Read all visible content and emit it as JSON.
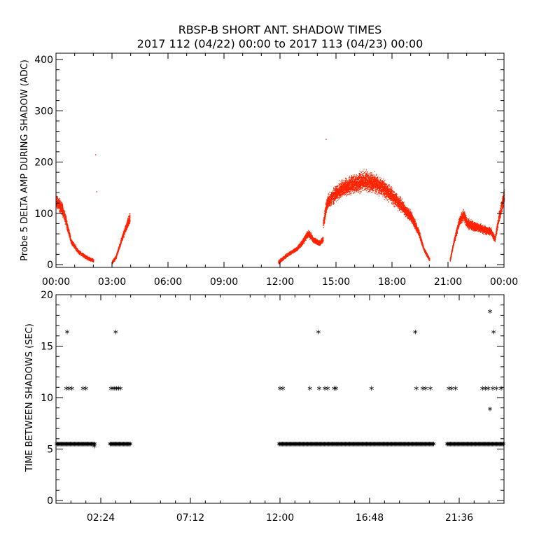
{
  "title": {
    "line1": "RBSP-B SHORT ANT. SHADOW TIMES",
    "line2": "2017 112 (04/22) 00:00 to 2017 113 (04/23) 00:00"
  },
  "colors": {
    "points": "#ff2200",
    "stars": "#000000",
    "frame": "#000000"
  },
  "chart_data": [
    {
      "type": "scatter",
      "ylabel": "Probe 5 DELTA AMP DURING SHADOW (ADC)",
      "xlabel": "",
      "x_unit": "hours",
      "xlim": [
        0,
        24
      ],
      "ylim": [
        0,
        400
      ],
      "xticks": [
        0,
        3,
        6,
        9,
        12,
        15,
        18,
        21,
        24
      ],
      "xtick_labels": [
        "00:00",
        "03:00",
        "06:00",
        "09:00",
        "12:00",
        "15:00",
        "18:00",
        "21:00",
        "00:00"
      ],
      "yticks": [
        0,
        100,
        200,
        300,
        400
      ],
      "ytick_labels": [
        "0",
        "100",
        "200",
        "300",
        "400"
      ],
      "color": "#ff2200",
      "segments": [
        {
          "x": [
            0.0,
            0.3,
            0.5,
            0.8,
            1.2,
            1.6,
            2.0
          ],
          "y": [
            125,
            110,
            88,
            45,
            25,
            15,
            8
          ]
        },
        {
          "x": [
            3.0,
            3.2,
            3.4,
            3.6,
            3.8,
            3.95
          ],
          "y": [
            5,
            15,
            38,
            60,
            80,
            92
          ]
        },
        {
          "x": [
            11.9,
            12.4,
            12.9,
            13.2,
            13.5,
            13.8,
            14.1,
            14.3
          ],
          "y": [
            5,
            20,
            32,
            45,
            62,
            48,
            42,
            50
          ]
        },
        {
          "x": [
            14.3,
            14.5,
            15.0,
            15.5,
            16.0,
            16.5,
            17.0,
            17.5,
            18.0,
            18.5,
            19.0,
            19.4,
            19.7,
            20.0
          ],
          "y": [
            80,
            120,
            140,
            152,
            158,
            165,
            160,
            150,
            135,
            115,
            95,
            65,
            30,
            10
          ]
        },
        {
          "x": [
            21.1,
            21.3,
            21.6,
            21.8,
            22.0,
            22.3,
            22.7,
            23.0,
            23.3,
            23.5,
            23.7,
            24.0
          ],
          "y": [
            10,
            45,
            85,
            98,
            82,
            76,
            72,
            68,
            65,
            50,
            90,
            135
          ]
        }
      ],
      "outliers": [
        {
          "x": 2.1,
          "y": 215
        },
        {
          "x": 2.15,
          "y": 143
        },
        {
          "x": 14.45,
          "y": 245
        }
      ]
    },
    {
      "type": "scatter",
      "ylabel": "TIME BETWEEN SHADOWS (SEC)",
      "xlabel": "",
      "x_unit": "hours",
      "xlim": [
        0,
        24
      ],
      "ylim": [
        0,
        20
      ],
      "xticks": [
        2.4,
        7.2,
        12.0,
        16.8,
        21.6
      ],
      "xtick_labels": [
        "02:24",
        "07:12",
        "12:00",
        "16:48",
        "21:36"
      ],
      "yticks": [
        0,
        5,
        10,
        15,
        20
      ],
      "ytick_labels": [
        "0",
        "5",
        "10",
        "15",
        "20"
      ],
      "marker": "*",
      "color": "#000000",
      "baseline_value": 5.4,
      "baseline_ranges": [
        [
          0.05,
          2.1
        ],
        [
          2.9,
          4.0
        ],
        [
          11.95,
          20.25
        ],
        [
          20.95,
          24.0
        ]
      ],
      "points": [
        {
          "x": 0.6,
          "y": 16.3
        },
        {
          "x": 0.55,
          "y": 10.8
        },
        {
          "x": 0.7,
          "y": 10.8
        },
        {
          "x": 0.85,
          "y": 10.8
        },
        {
          "x": 1.45,
          "y": 10.8
        },
        {
          "x": 1.6,
          "y": 10.8
        },
        {
          "x": 2.05,
          "y": 5.2
        },
        {
          "x": 2.95,
          "y": 10.8
        },
        {
          "x": 3.05,
          "y": 10.8
        },
        {
          "x": 3.15,
          "y": 10.8
        },
        {
          "x": 3.25,
          "y": 10.8
        },
        {
          "x": 3.35,
          "y": 10.8
        },
        {
          "x": 3.45,
          "y": 10.8
        },
        {
          "x": 3.2,
          "y": 16.3
        },
        {
          "x": 12.0,
          "y": 10.8
        },
        {
          "x": 12.15,
          "y": 10.8
        },
        {
          "x": 13.6,
          "y": 10.8
        },
        {
          "x": 14.05,
          "y": 16.3
        },
        {
          "x": 14.1,
          "y": 10.8
        },
        {
          "x": 14.4,
          "y": 10.8
        },
        {
          "x": 14.55,
          "y": 10.8
        },
        {
          "x": 14.9,
          "y": 10.8
        },
        {
          "x": 15.0,
          "y": 10.8
        },
        {
          "x": 16.9,
          "y": 10.8
        },
        {
          "x": 19.25,
          "y": 16.3
        },
        {
          "x": 19.3,
          "y": 10.8
        },
        {
          "x": 19.65,
          "y": 10.8
        },
        {
          "x": 19.8,
          "y": 10.8
        },
        {
          "x": 20.05,
          "y": 10.8
        },
        {
          "x": 21.05,
          "y": 10.8
        },
        {
          "x": 21.2,
          "y": 10.8
        },
        {
          "x": 21.4,
          "y": 10.8
        },
        {
          "x": 22.85,
          "y": 10.8
        },
        {
          "x": 23.0,
          "y": 10.8
        },
        {
          "x": 23.15,
          "y": 10.8
        },
        {
          "x": 23.4,
          "y": 10.8
        },
        {
          "x": 23.6,
          "y": 10.8
        },
        {
          "x": 23.85,
          "y": 10.8
        },
        {
          "x": 23.25,
          "y": 18.3
        },
        {
          "x": 23.45,
          "y": 16.3
        },
        {
          "x": 23.25,
          "y": 8.8
        }
      ]
    }
  ]
}
